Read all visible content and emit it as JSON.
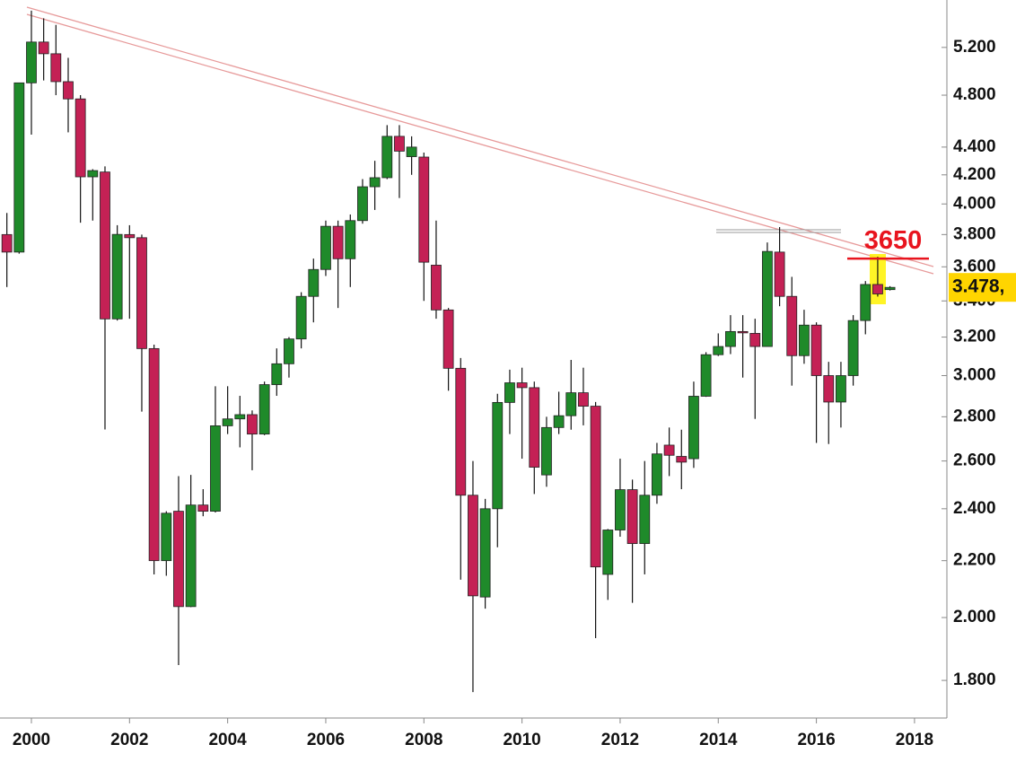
{
  "chart_data": {
    "type": "candlestick",
    "x": [
      1999.5,
      1999.75,
      2000,
      2000.25,
      2000.5,
      2000.75,
      2001,
      2001.25,
      2001.5,
      2001.75,
      2002,
      2002.25,
      2002.5,
      2002.75,
      2003,
      2003.25,
      2003.5,
      2003.75,
      2004,
      2004.25,
      2004.5,
      2004.75,
      2005,
      2005.25,
      2005.5,
      2005.75,
      2006,
      2006.25,
      2006.5,
      2006.75,
      2007,
      2007.25,
      2007.5,
      2007.75,
      2008,
      2008.25,
      2008.5,
      2008.75,
      2009,
      2009.25,
      2009.5,
      2009.75,
      2010,
      2010.25,
      2010.5,
      2010.75,
      2011,
      2011.25,
      2011.5,
      2011.75,
      2012,
      2012.25,
      2012.5,
      2012.75,
      2013,
      2013.25,
      2013.5,
      2013.75,
      2014,
      2014.25,
      2014.5,
      2014.75,
      2015,
      2015.25,
      2015.5,
      2015.75,
      2016,
      2016.25,
      2016.5,
      2016.75,
      2017,
      2017.25,
      2017.5
    ],
    "open": [
      3800,
      3690,
      4900,
      5247,
      5145,
      4910,
      4770,
      4186,
      4220,
      3299,
      3800,
      3780,
      3139,
      2200,
      2390,
      2037,
      2415,
      2390,
      2758,
      2790,
      2810,
      2720,
      2955,
      3060,
      3190,
      3426,
      3584,
      3853,
      3649,
      3890,
      4117,
      4180,
      4480,
      4330,
      4327,
      3610,
      3349,
      3037,
      2455,
      2070,
      2400,
      2868,
      2964,
      2940,
      2540,
      2750,
      2805,
      2915,
      2850,
      2150,
      2316,
      2478,
      2264,
      2455,
      2670,
      2620,
      2610,
      2898,
      3107,
      3150,
      3230,
      3220,
      3150,
      3690,
      3426,
      3102,
      3265,
      3000,
      2870,
      3000,
      3290,
      3495,
      3465
    ],
    "high": [
      3940,
      4900,
      5530,
      5460,
      5400,
      5110,
      4800,
      4240,
      4260,
      3860,
      3860,
      3800,
      3160,
      2390,
      2535,
      2540,
      2480,
      2947,
      2947,
      2900,
      2830,
      2970,
      3140,
      3200,
      3450,
      3650,
      3890,
      3890,
      3930,
      4170,
      4300,
      4565,
      4565,
      4480,
      4360,
      3890,
      3360,
      3090,
      2600,
      2440,
      2910,
      3030,
      3040,
      2970,
      2800,
      2920,
      3080,
      3040,
      2870,
      2320,
      2610,
      2520,
      2600,
      2680,
      2750,
      2740,
      2970,
      3120,
      3220,
      3320,
      3320,
      3300,
      3750,
      3848,
      3540,
      3350,
      3280,
      3070,
      3070,
      3320,
      3515,
      3661,
      3485
    ],
    "low": [
      3480,
      3680,
      4493,
      4920,
      4800,
      4510,
      3876,
      3890,
      2741,
      3290,
      3300,
      2824,
      2150,
      2145,
      1847,
      2035,
      2370,
      2385,
      2720,
      2660,
      2560,
      2715,
      2900,
      2990,
      3140,
      3280,
      3545,
      3360,
      3480,
      3870,
      3960,
      4170,
      4040,
      4200,
      3400,
      3300,
      2925,
      2131,
      1765,
      2030,
      2250,
      2720,
      2610,
      2460,
      2490,
      2720,
      2740,
      2760,
      1932,
      2060,
      2290,
      2050,
      2150,
      2420,
      2535,
      2480,
      2570,
      2895,
      3100,
      3110,
      2990,
      2790,
      3150,
      3370,
      2950,
      3060,
      2680,
      2675,
      2750,
      2950,
      3215,
      3425,
      3460
    ],
    "close": [
      3690,
      4900,
      5247,
      5145,
      4910,
      4770,
      4186,
      4230,
      3299,
      3801,
      3780,
      3139,
      2200,
      2382,
      2037,
      2415,
      2390,
      2758,
      2790,
      2810,
      2720,
      2955,
      3060,
      3190,
      3426,
      3584,
      3853,
      3649,
      3890,
      4117,
      4180,
      4480,
      4370,
      4400,
      3628,
      3349,
      3037,
      2455,
      2074,
      2400,
      2868,
      2964,
      2940,
      2573,
      2750,
      2805,
      2915,
      2850,
      2177,
      2316,
      2478,
      2264,
      2455,
      2631,
      2625,
      2595,
      2898,
      3107,
      3150,
      3230,
      3225,
      3150,
      3694,
      3426,
      3102,
      3265,
      3000,
      2870,
      3000,
      3290,
      3495,
      3440,
      3478
    ],
    "up_color": "#1f8a2a",
    "down_color": "#c42155",
    "xlim": [
      1999.36,
      2018.66
    ],
    "xticks": [
      2000,
      2002,
      2004,
      2006,
      2008,
      2010,
      2012,
      2014,
      2016,
      2018
    ],
    "ylim": [
      1690,
      5630
    ],
    "log_scale": true,
    "yticks": [
      {
        "value": 1800,
        "label": "1.800"
      },
      {
        "value": 2000,
        "label": "2.000"
      },
      {
        "value": 2200,
        "label": "2.200"
      },
      {
        "value": 2400,
        "label": "2.400"
      },
      {
        "value": 2600,
        "label": "2.600"
      },
      {
        "value": 2800,
        "label": "2.800"
      },
      {
        "value": 3000,
        "label": "3.000"
      },
      {
        "value": 3200,
        "label": "3.200"
      },
      {
        "value": 3400,
        "label": "3.400"
      },
      {
        "value": 3600,
        "label": "3.600"
      },
      {
        "value": 3800,
        "label": "3.800"
      },
      {
        "value": 4000,
        "label": "4.000"
      },
      {
        "value": 4200,
        "label": "4.200"
      },
      {
        "value": 4400,
        "label": "4.400"
      },
      {
        "value": 4800,
        "label": "4.800"
      },
      {
        "value": 5200,
        "label": "5.200"
      }
    ],
    "level": {
      "value": 3650,
      "label": "3650",
      "color": "#e8141e"
    },
    "last_price": {
      "value": 3478,
      "label": "3.478,"
    }
  }
}
